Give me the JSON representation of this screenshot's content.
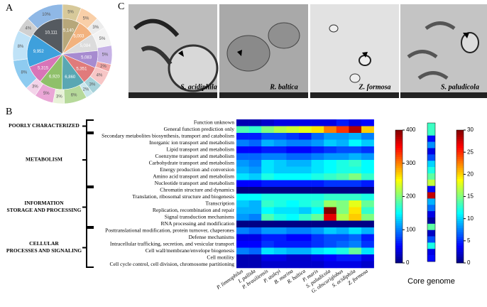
{
  "panel_labels": [
    "A",
    "B",
    "C"
  ],
  "micrographs": {
    "captions": [
      "S. acidiphila",
      "R. baltica",
      "Z. formosa",
      "S. paludicola"
    ]
  },
  "chart_data": [
    {
      "type": "pie",
      "series": [
        {
          "values": [
            5140,
            5003,
            5084,
            5083,
            5351,
            6860,
            6920,
            5315,
            9952,
            10111
          ],
          "value_labels": [
            "5,140",
            "5,003",
            "5,084",
            "5,083",
            "5,351",
            "6,860",
            "6,920",
            "5,315",
            "9,952",
            "10,111"
          ],
          "colors": [
            "#b7a77a",
            "#f2b27e",
            "#dcdcdc",
            "#a78bd0",
            "#e07b7b",
            "#5aa7b3",
            "#8fc06a",
            "#d874b8",
            "#3ea0dc",
            "#555a60"
          ]
        },
        {
          "values": [
            5,
            5,
            3,
            5,
            5,
            2,
            4,
            3,
            2,
            6,
            3,
            5,
            3,
            8,
            8,
            4,
            10
          ],
          "value_labels": [
            "5%",
            "5%",
            "3%",
            "5%",
            "5%",
            "2%",
            "4%",
            "3%",
            "2%",
            "6%",
            "3%",
            "5%",
            "3%",
            "8%",
            "8%",
            "4%",
            "10%"
          ],
          "colors": [
            "#d7c99a",
            "#f9cfa8",
            "#ececec",
            "#f3f3f3",
            "#c7b3e6",
            "#f0a5a5",
            "#f7c6c6",
            "#a6d2da",
            "#c9e6ec",
            "#b6d99a",
            "#e8f2d8",
            "#eaa6d6",
            "#f3d3e9",
            "#8ecbf0",
            "#bfe2f7",
            "#d0d0d0",
            "#8fb8e6"
          ]
        }
      ]
    },
    {
      "type": "heatmap",
      "categories": [
        "P. limnophilus",
        "I. pallida",
        "P. brasiliensis",
        "P. staleyi",
        "B. marina",
        "R. baltica",
        "P. maris",
        "S. paludicola",
        "G. obscuriglobus",
        "S. acidiphila",
        "Z. formosa"
      ],
      "rows": [
        "Function unknown",
        "General function prediction only",
        "Secondary metabolites biosynthesis, transport and catabolism",
        "Inorganic ion transport and metabolism",
        "Lipid transport and metabolism",
        "Coenzyme transport and metabolism",
        "Carbohydrate transport and metabolism",
        "Energy production and conversion",
        "Amino acid transport and metabolism",
        "Nucleotide transport and metabolism",
        "Chromatin structure and dynamics",
        "Translation, ribosomal structure and biogenesis",
        "Transcription",
        "Replication, recombination and repair",
        "Signal transduction mechanisms",
        "RNA processing and modification",
        "Posttranslational modification, protein turnover, chaperones",
        "Defense mechanisms",
        "Intracellular trafficking, secretion, and vesicular transport",
        "Cell wall/membrane/envelope biogenesis",
        "Cell motility",
        "Cell cycle control, cell division, chromosome partitioning"
      ],
      "groups": [
        {
          "label": [
            "POORLY CHARACTERIZED"
          ],
          "rows": [
            0,
            1
          ]
        },
        {
          "label": [
            "METABOLISM"
          ],
          "rows": [
            2,
            9
          ]
        },
        {
          "label": [
            "INFORMATION",
            "STORAGE AND PROCESSING"
          ],
          "rows": [
            10,
            15
          ]
        },
        {
          "label": [
            "CELLULAR",
            "PROCESSES AND SIGNALING"
          ],
          "rows": [
            16,
            21
          ]
        }
      ],
      "values": [
        [
          20,
          20,
          30,
          40,
          40,
          40,
          40,
          40,
          60,
          40,
          50
        ],
        [
          180,
          170,
          200,
          220,
          230,
          240,
          260,
          300,
          330,
          380,
          270
        ],
        [
          60,
          60,
          80,
          80,
          70,
          60,
          90,
          110,
          110,
          120,
          100
        ],
        [
          100,
          90,
          120,
          110,
          100,
          100,
          110,
          130,
          120,
          150,
          130
        ],
        [
          50,
          50,
          60,
          60,
          50,
          50,
          60,
          70,
          80,
          80,
          70
        ],
        [
          90,
          90,
          100,
          100,
          90,
          90,
          100,
          110,
          110,
          120,
          110
        ],
        [
          110,
          100,
          140,
          130,
          120,
          120,
          140,
          150,
          160,
          170,
          150
        ],
        [
          120,
          110,
          140,
          130,
          130,
          130,
          140,
          150,
          160,
          160,
          150
        ],
        [
          140,
          130,
          160,
          150,
          150,
          150,
          160,
          170,
          180,
          200,
          170
        ],
        [
          50,
          50,
          60,
          60,
          60,
          60,
          60,
          70,
          70,
          70,
          60
        ],
        [
          1,
          1,
          1,
          1,
          1,
          1,
          1,
          1,
          1,
          2,
          1
        ],
        [
          150,
          150,
          160,
          160,
          160,
          160,
          160,
          170,
          170,
          170,
          160
        ],
        [
          130,
          120,
          170,
          160,
          150,
          160,
          170,
          210,
          200,
          240,
          190
        ],
        [
          120,
          120,
          150,
          140,
          140,
          130,
          150,
          400,
          200,
          260,
          170
        ],
        [
          110,
          100,
          180,
          160,
          150,
          170,
          190,
          360,
          220,
          270,
          200
        ],
        [
          2,
          2,
          2,
          2,
          2,
          2,
          2,
          2,
          2,
          3,
          2
        ],
        [
          100,
          90,
          110,
          110,
          100,
          100,
          110,
          130,
          120,
          140,
          120
        ],
        [
          40,
          40,
          60,
          60,
          50,
          50,
          70,
          80,
          80,
          90,
          60
        ],
        [
          50,
          50,
          70,
          60,
          60,
          60,
          70,
          80,
          90,
          100,
          70
        ],
        [
          100,
          90,
          140,
          130,
          120,
          120,
          140,
          150,
          160,
          190,
          140
        ],
        [
          20,
          20,
          40,
          40,
          30,
          30,
          40,
          50,
          60,
          60,
          40
        ],
        [
          20,
          20,
          30,
          30,
          30,
          30,
          30,
          40,
          40,
          40,
          30
        ]
      ],
      "zlim": [
        0,
        400
      ],
      "zticks": [
        0,
        100,
        200,
        300,
        400
      ],
      "colormap": "jet"
    },
    {
      "type": "heatmap-column",
      "label": "Core genome",
      "values": [
        13,
        13,
        4,
        8,
        3,
        6,
        10,
        12,
        14,
        17,
        4,
        28,
        9,
        7,
        3,
        1,
        14,
        2,
        6,
        12,
        3,
        4
      ],
      "zlim": [
        0,
        30
      ],
      "zticks": [
        0,
        5,
        10,
        15,
        20,
        25,
        30
      ],
      "colormap": "jet"
    }
  ]
}
